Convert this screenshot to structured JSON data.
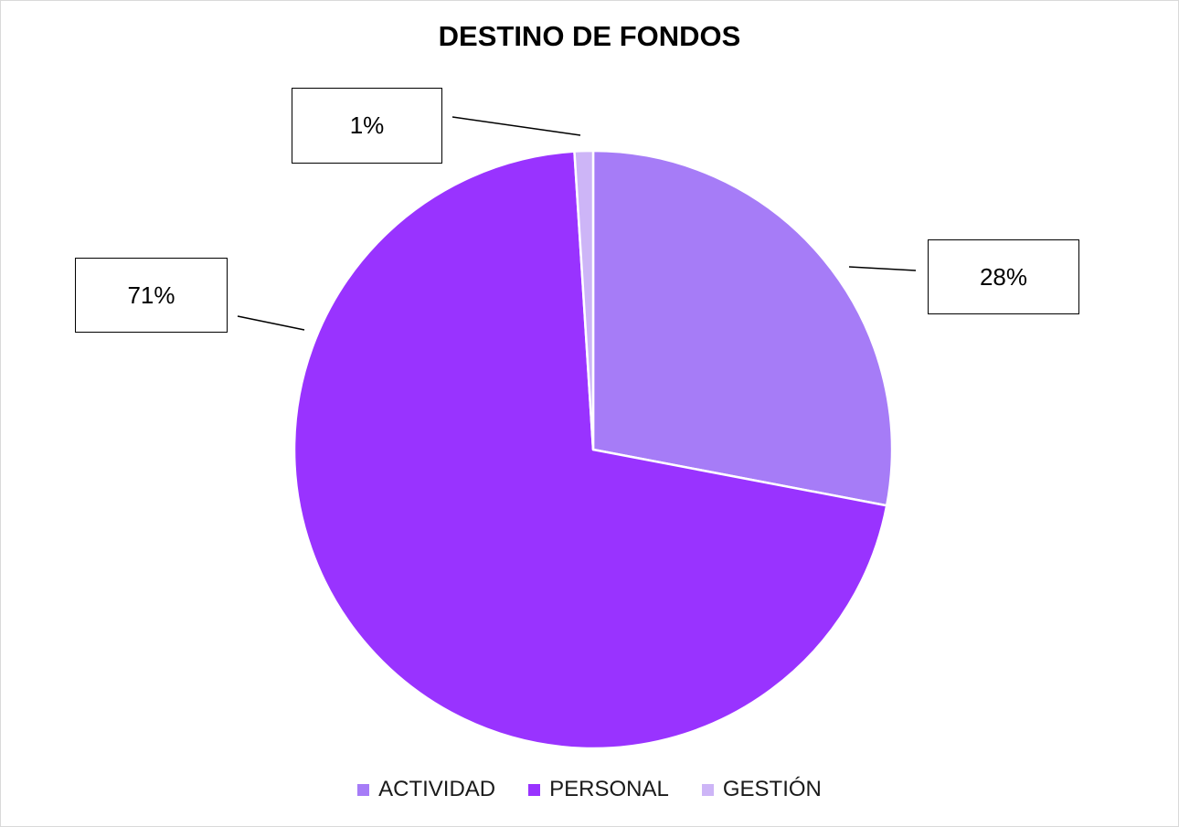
{
  "chart_data": {
    "type": "pie",
    "title": "DESTINO DE FONDOS",
    "categories": [
      "ACTIVIDAD",
      "PERSONAL",
      "GESTIÓN"
    ],
    "values": [
      28,
      71,
      1
    ],
    "data_labels": [
      "28%",
      "71%",
      "1%"
    ],
    "colors": [
      "#a67cf7",
      "#9933ff",
      "#cdb5f7"
    ],
    "start_angle_deg": 0,
    "direction": "clockwise",
    "legend_position": "bottom"
  }
}
